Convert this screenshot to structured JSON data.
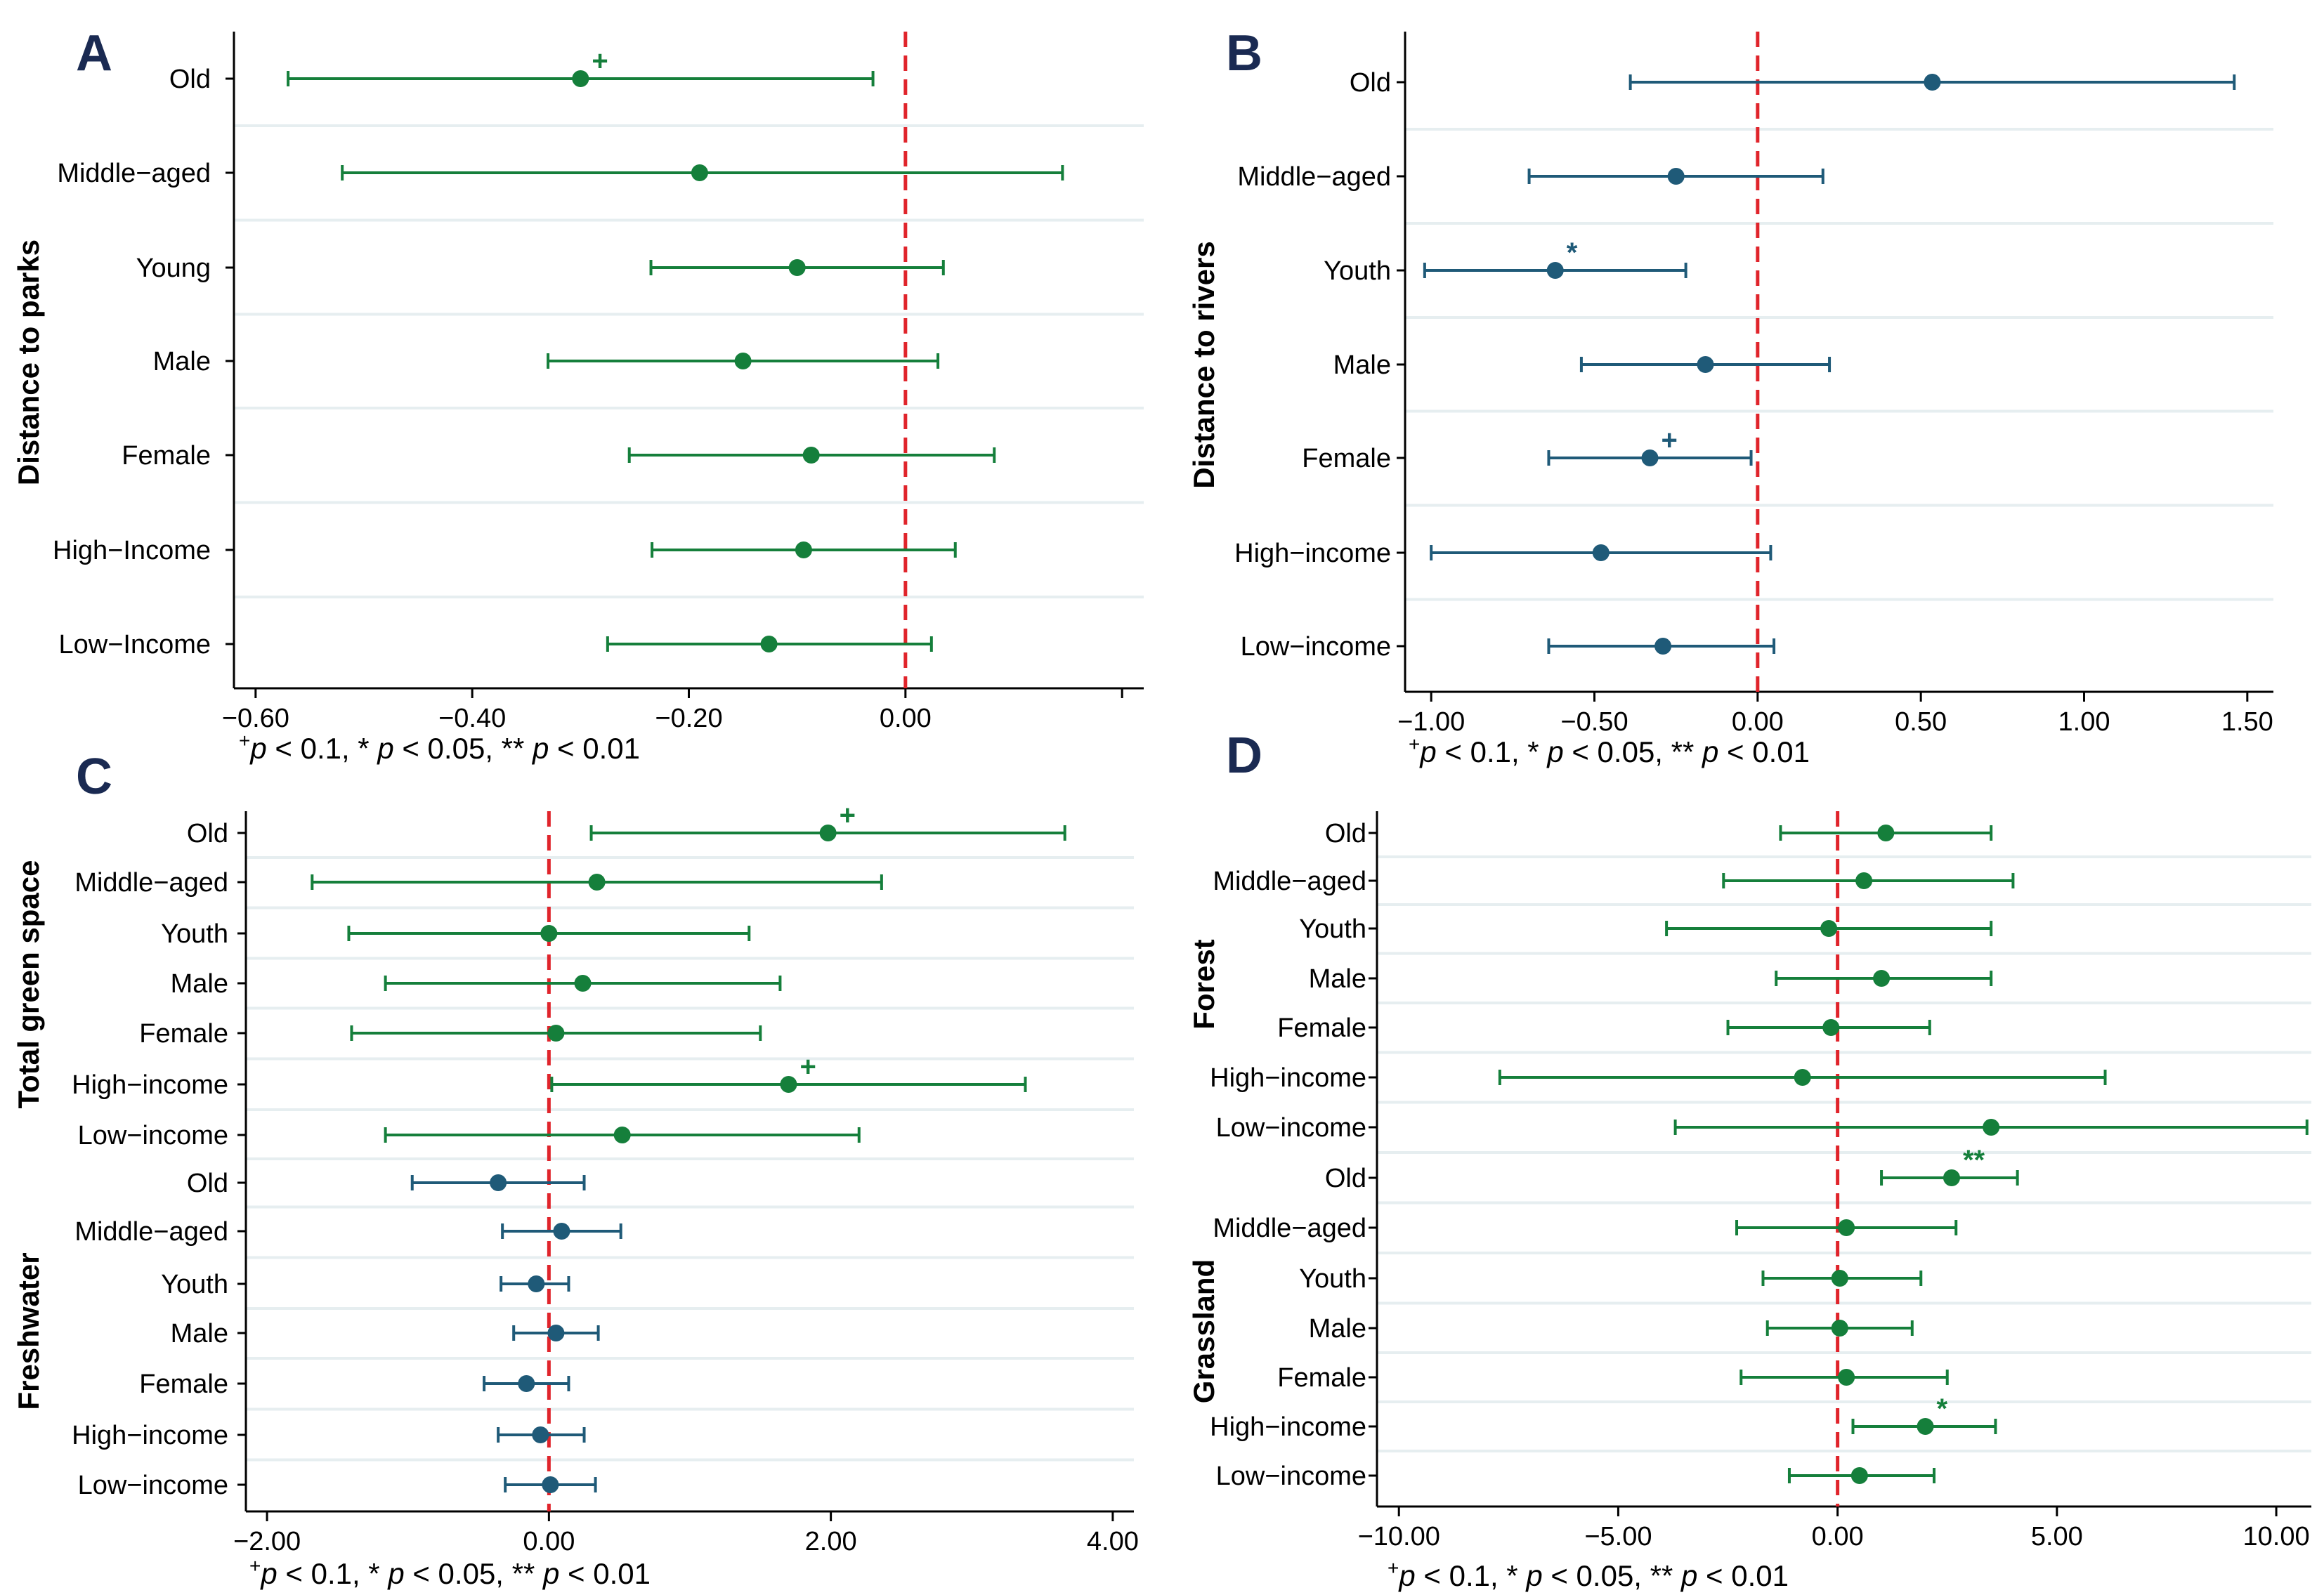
{
  "colors": {
    "green": "#157f3b",
    "blue": "#1f5a78",
    "ref_line": "#e0242b",
    "grid": "#e6eef0",
    "axis": "#000000"
  },
  "footnote": {
    "sym1": "+",
    "p1": "p",
    "t1": " < 0.1, * ",
    "p2": "p",
    "t2": " < 0.05, ** ",
    "p3": "p",
    "t3": " < 0.01"
  },
  "chart_data": [
    {
      "id": "A",
      "letter": "A",
      "type": "coefficient-plot",
      "xlim": [
        -0.62,
        0.22
      ],
      "xticks": [
        -0.6,
        -0.4,
        -0.2,
        0.0,
        0.2
      ],
      "xtick_labels": [
        "−0.60",
        "−0.40",
        "−0.20",
        "0.00",
        ""
      ],
      "reference_line": 0,
      "groups": [
        {
          "ylabel": "Distance to parks",
          "color": "#157f3b",
          "rows": [
            {
              "label": "Old",
              "est": -0.3,
              "lo": -0.57,
              "hi": -0.03,
              "sig": "+"
            },
            {
              "label": "Middle−aged",
              "est": -0.19,
              "lo": -0.52,
              "hi": 0.145,
              "sig": ""
            },
            {
              "label": "Young",
              "est": -0.1,
              "lo": -0.235,
              "hi": 0.035,
              "sig": ""
            },
            {
              "label": "Male",
              "est": -0.15,
              "lo": -0.33,
              "hi": 0.03,
              "sig": ""
            },
            {
              "label": "Female",
              "est": -0.087,
              "lo": -0.255,
              "hi": 0.082,
              "sig": ""
            },
            {
              "label": "High−Income",
              "est": -0.094,
              "lo": -0.234,
              "hi": 0.046,
              "sig": ""
            },
            {
              "label": "Low−Income",
              "est": -0.126,
              "lo": -0.275,
              "hi": 0.024,
              "sig": ""
            }
          ]
        }
      ]
    },
    {
      "id": "B",
      "letter": "B",
      "type": "coefficient-plot",
      "xlim": [
        -1.08,
        1.58
      ],
      "xticks": [
        -1.0,
        -0.5,
        0.0,
        0.5,
        1.0,
        1.5
      ],
      "xtick_labels": [
        "−1.00",
        "−0.50",
        "0.00",
        "0.50",
        "1.00",
        "1.50"
      ],
      "reference_line": 0,
      "groups": [
        {
          "ylabel": "Distance to rivers",
          "color": "#1f5a78",
          "rows": [
            {
              "label": "Old",
              "est": 0.535,
              "lo": -0.39,
              "hi": 1.46,
              "sig": ""
            },
            {
              "label": "Middle−aged",
              "est": -0.25,
              "lo": -0.7,
              "hi": 0.2,
              "sig": ""
            },
            {
              "label": "Youth",
              "est": -0.62,
              "lo": -1.02,
              "hi": -0.22,
              "sig": "*"
            },
            {
              "label": "Male",
              "est": -0.16,
              "lo": -0.54,
              "hi": 0.22,
              "sig": ""
            },
            {
              "label": "Female",
              "est": -0.33,
              "lo": -0.64,
              "hi": -0.02,
              "sig": "+"
            },
            {
              "label": "High−income",
              "est": -0.48,
              "lo": -1.0,
              "hi": 0.04,
              "sig": ""
            },
            {
              "label": "Low−income",
              "est": -0.29,
              "lo": -0.64,
              "hi": 0.05,
              "sig": ""
            }
          ]
        }
      ]
    },
    {
      "id": "C",
      "letter": "C",
      "type": "coefficient-plot",
      "xlim": [
        -2.15,
        4.15
      ],
      "xticks": [
        -2,
        0,
        2,
        4
      ],
      "xtick_labels": [
        "−2.00",
        "0.00",
        "2.00",
        "4.00"
      ],
      "reference_line": 0,
      "groups": [
        {
          "ylabel": "Total green space",
          "color": "#157f3b",
          "rows": [
            {
              "label": "Old",
              "est": 1.98,
              "lo": 0.3,
              "hi": 3.66,
              "sig": "+"
            },
            {
              "label": "Middle−aged",
              "est": 0.34,
              "lo": -1.68,
              "hi": 2.36,
              "sig": ""
            },
            {
              "label": "Youth",
              "est": 0.0,
              "lo": -1.42,
              "hi": 1.42,
              "sig": ""
            },
            {
              "label": "Male",
              "est": 0.24,
              "lo": -1.16,
              "hi": 1.64,
              "sig": ""
            },
            {
              "label": "Female",
              "est": 0.05,
              "lo": -1.4,
              "hi": 1.5,
              "sig": ""
            },
            {
              "label": "High−income",
              "est": 1.7,
              "lo": 0.02,
              "hi": 3.38,
              "sig": "+"
            },
            {
              "label": "Low−income",
              "est": 0.52,
              "lo": -1.16,
              "hi": 2.2,
              "sig": ""
            }
          ]
        },
        {
          "ylabel": "Freshwater",
          "color": "#1f5a78",
          "rows": [
            {
              "label": "Old",
              "est": -0.36,
              "lo": -0.97,
              "hi": 0.25,
              "sig": ""
            },
            {
              "label": "Middle−aged",
              "est": 0.09,
              "lo": -0.33,
              "hi": 0.51,
              "sig": ""
            },
            {
              "label": "Youth",
              "est": -0.09,
              "lo": -0.34,
              "hi": 0.14,
              "sig": ""
            },
            {
              "label": "Male",
              "est": 0.05,
              "lo": -0.25,
              "hi": 0.35,
              "sig": ""
            },
            {
              "label": "Female",
              "est": -0.16,
              "lo": -0.46,
              "hi": 0.14,
              "sig": ""
            },
            {
              "label": "High−income",
              "est": -0.06,
              "lo": -0.36,
              "hi": 0.25,
              "sig": ""
            },
            {
              "label": "Low−income",
              "est": 0.01,
              "lo": -0.31,
              "hi": 0.33,
              "sig": ""
            }
          ]
        }
      ]
    },
    {
      "id": "D",
      "letter": "D",
      "type": "coefficient-plot",
      "xlim": [
        -10.5,
        10.8
      ],
      "xticks": [
        -10,
        -5,
        0,
        5,
        10
      ],
      "xtick_labels": [
        "−10.00",
        "−5.00",
        "0.00",
        "5.00",
        "10.00"
      ],
      "reference_line": 0,
      "groups": [
        {
          "ylabel": "Forest",
          "color": "#157f3b",
          "rows": [
            {
              "label": "Old",
              "est": 1.1,
              "lo": -1.3,
              "hi": 3.5,
              "sig": ""
            },
            {
              "label": "Middle−aged",
              "est": 0.6,
              "lo": -2.6,
              "hi": 4.0,
              "sig": ""
            },
            {
              "label": "Youth",
              "est": -0.2,
              "lo": -3.9,
              "hi": 3.5,
              "sig": ""
            },
            {
              "label": "Male",
              "est": 1.0,
              "lo": -1.4,
              "hi": 3.5,
              "sig": ""
            },
            {
              "label": "Female",
              "est": -0.15,
              "lo": -2.5,
              "hi": 2.1,
              "sig": ""
            },
            {
              "label": "High−income",
              "est": -0.8,
              "lo": -7.7,
              "hi": 6.1,
              "sig": ""
            },
            {
              "label": "Low−income",
              "est": 3.5,
              "lo": -3.7,
              "hi": 10.7,
              "sig": ""
            }
          ]
        },
        {
          "ylabel": "Grassland",
          "color": "#157f3b",
          "rows": [
            {
              "label": "Old",
              "est": 2.6,
              "lo": 1.0,
              "hi": 4.1,
              "sig": "**"
            },
            {
              "label": "Middle−aged",
              "est": 0.2,
              "lo": -2.3,
              "hi": 2.7,
              "sig": ""
            },
            {
              "label": "Youth",
              "est": 0.05,
              "lo": -1.7,
              "hi": 1.9,
              "sig": ""
            },
            {
              "label": "Male",
              "est": 0.05,
              "lo": -1.6,
              "hi": 1.7,
              "sig": ""
            },
            {
              "label": "Female",
              "est": 0.2,
              "lo": -2.2,
              "hi": 2.5,
              "sig": ""
            },
            {
              "label": "High−income",
              "est": 2.0,
              "lo": 0.35,
              "hi": 3.6,
              "sig": "*"
            },
            {
              "label": "Low−income",
              "est": 0.5,
              "lo": -1.1,
              "hi": 2.2,
              "sig": ""
            }
          ]
        }
      ]
    }
  ]
}
